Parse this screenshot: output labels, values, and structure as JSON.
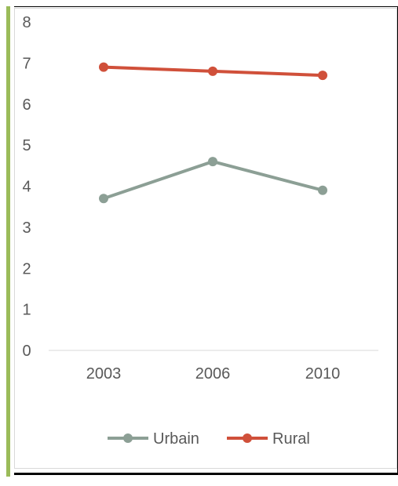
{
  "chart_data": {
    "type": "line",
    "categories": [
      "2003",
      "2006",
      "2010"
    ],
    "series": [
      {
        "name": "Urbain",
        "values": [
          3.7,
          4.6,
          3.9
        ],
        "color": "#8c9f95"
      },
      {
        "name": "Rural",
        "values": [
          6.9,
          6.8,
          6.7
        ],
        "color": "#d0503a"
      }
    ],
    "ylim": [
      0,
      8
    ],
    "yticks": [
      "0",
      "1",
      "2",
      "3",
      "4",
      "5",
      "6",
      "7",
      "8"
    ],
    "title": "",
    "xlabel": "",
    "ylabel": "",
    "grid": false,
    "legend": "bottom"
  },
  "colors": {
    "accent_bar": "#9bbb59",
    "axis": "#d9d9d9",
    "text": "#595959"
  }
}
